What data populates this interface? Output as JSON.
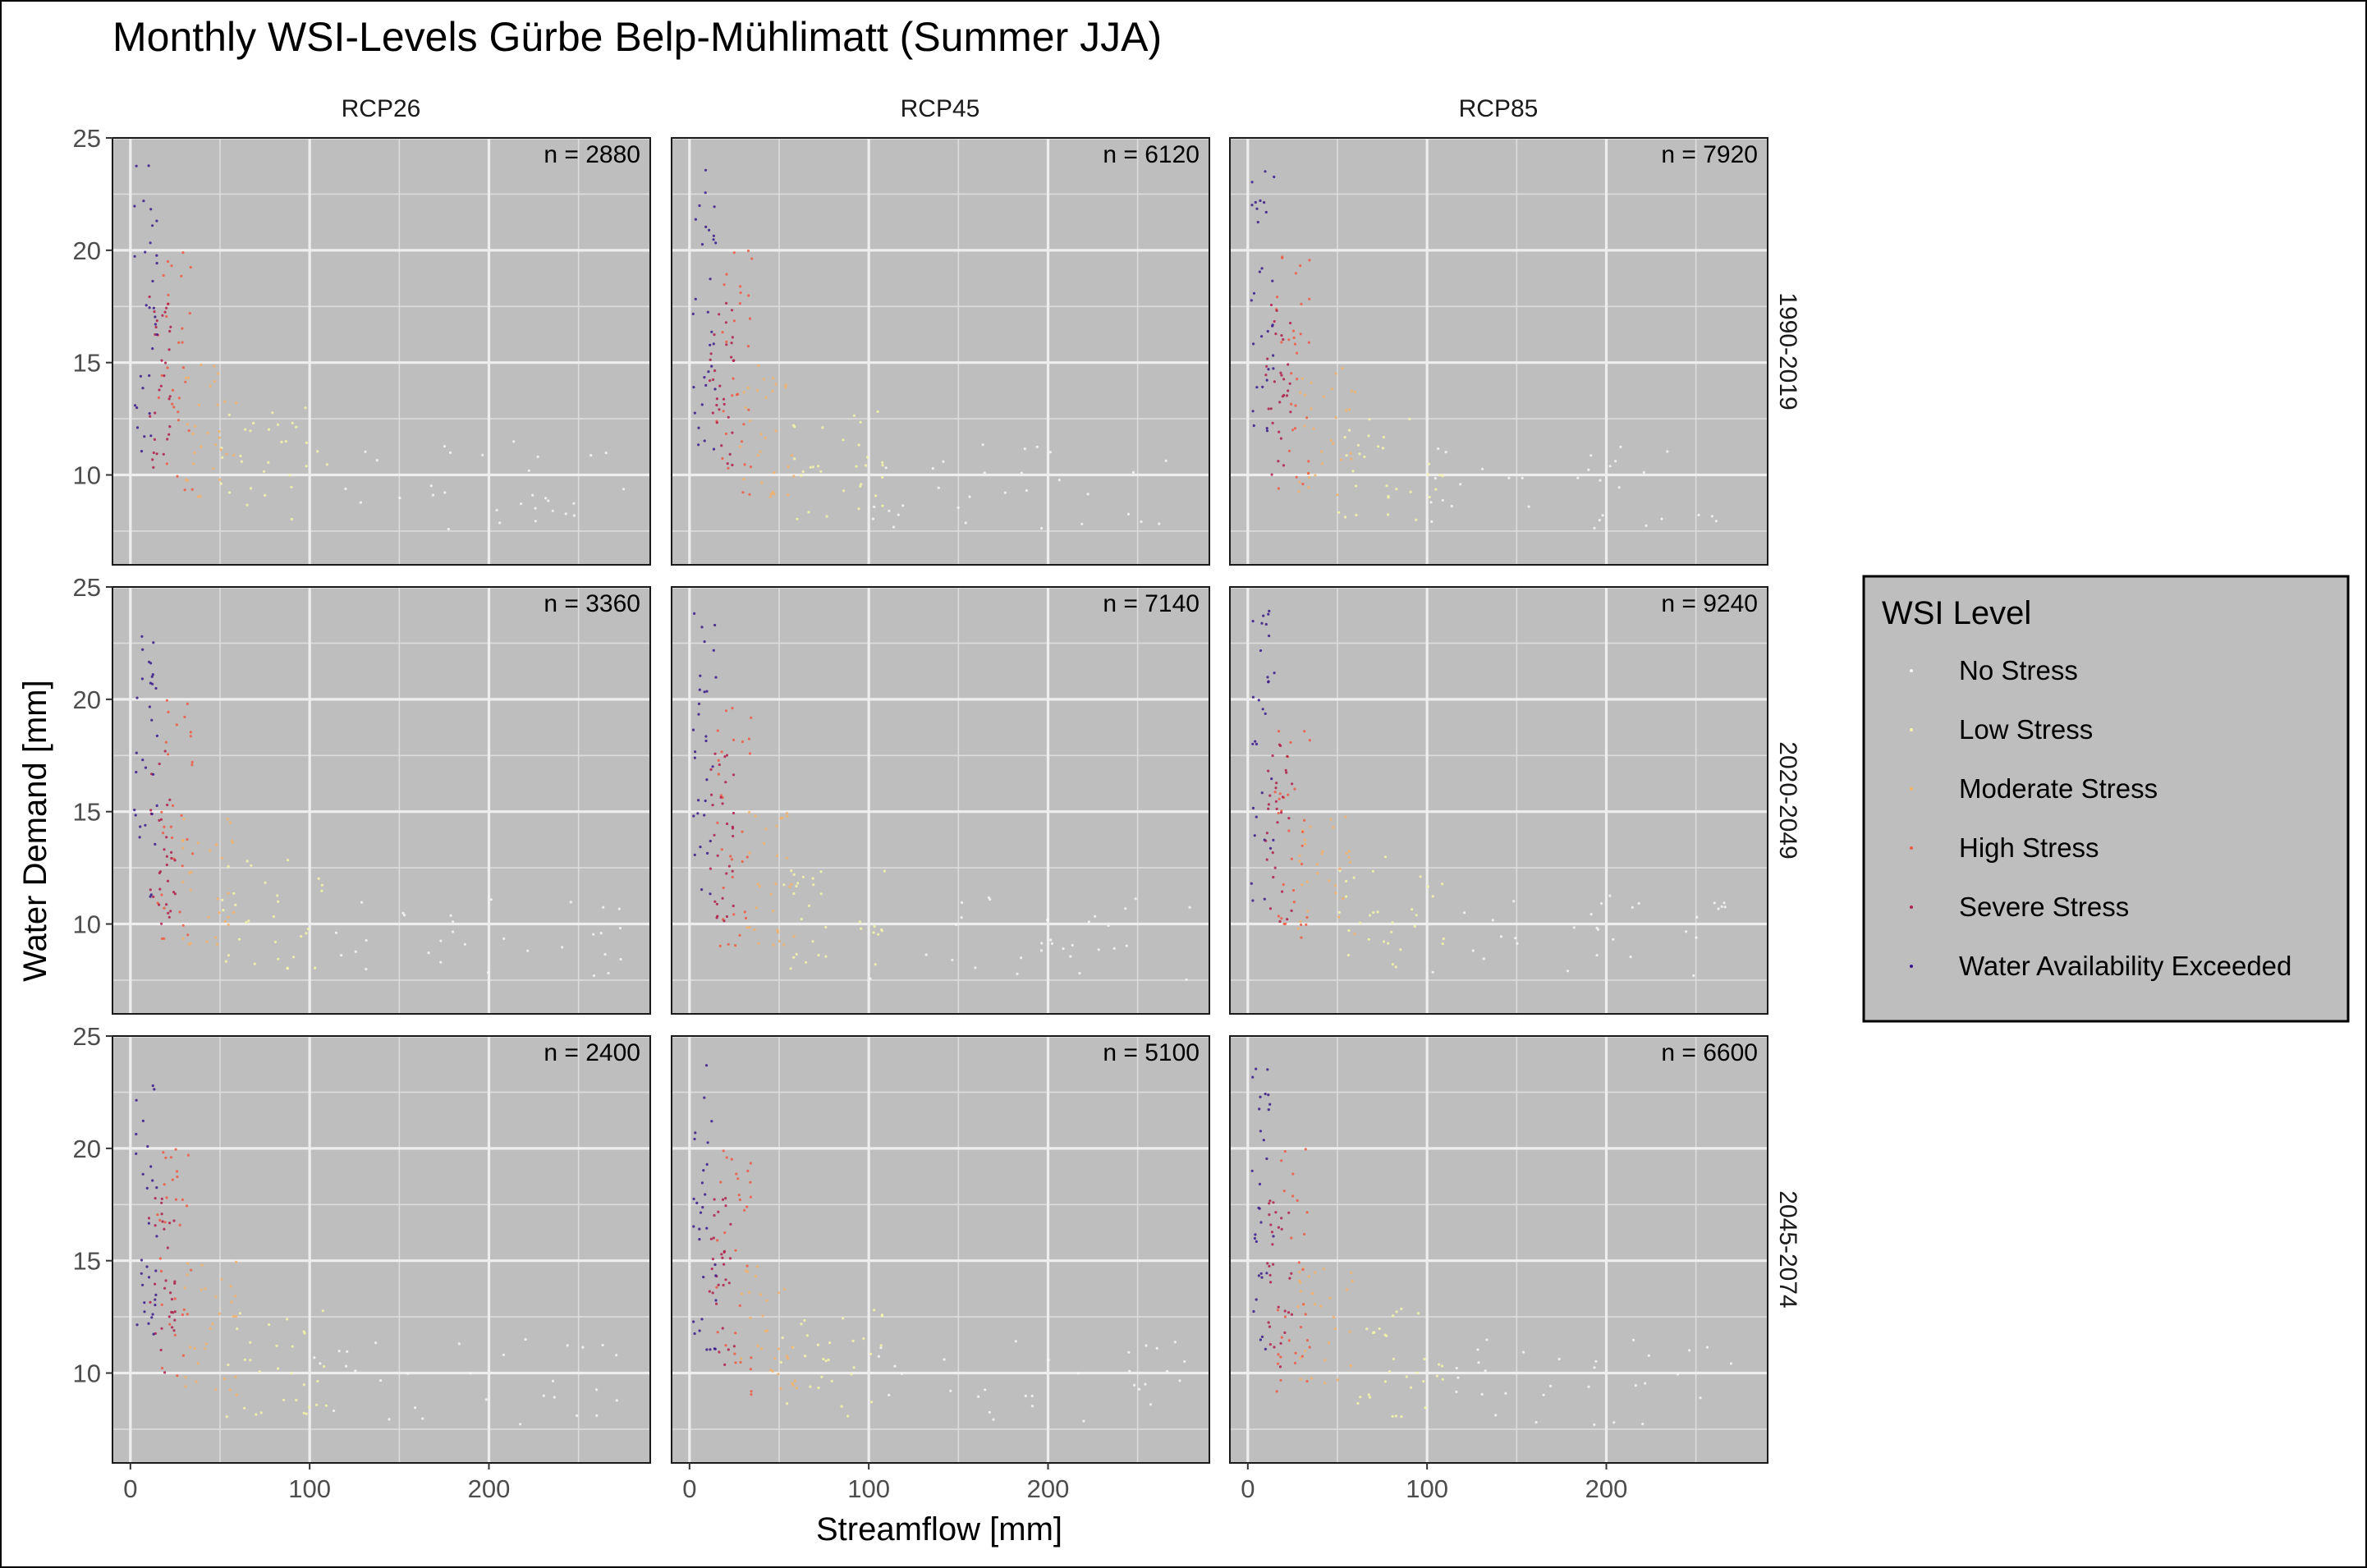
{
  "chart_data": {
    "type": "scatter",
    "title": "Monthly WSI-Levels Gürbe Belp-Mühlimatt (Summer JJA)",
    "xlabel": "Streamflow [mm]",
    "ylabel": "Water Demand [mm]",
    "xlim": [
      -10,
      290
    ],
    "ylim": [
      6,
      25
    ],
    "x_ticks": [
      0,
      100,
      200
    ],
    "x_tick_labels": [
      "0",
      "100",
      "200"
    ],
    "y_ticks": [
      10,
      15,
      20,
      25
    ],
    "y_tick_labels": [
      "10",
      "15",
      "20",
      "25"
    ],
    "grid": true,
    "legend_placement": "right",
    "facet_cols": [
      "RCP26",
      "RCP45",
      "RCP85"
    ],
    "facet_rows": [
      "1990-2019",
      "2020-2049",
      "2045-2074"
    ],
    "panel_counts": [
      [
        "n = 2880",
        "n = 6120",
        "n = 7920"
      ],
      [
        "n = 3360",
        "n = 7140",
        "n = 9240"
      ],
      [
        "n = 2400",
        "n = 5100",
        "n = 6600"
      ]
    ],
    "legend": {
      "title": "WSI Level",
      "items": [
        {
          "label": "No Stress",
          "color": "#f7f7f7"
        },
        {
          "label": "Low Stress",
          "color": "#f6f6a8"
        },
        {
          "label": "Moderate Stress",
          "color": "#f4b066"
        },
        {
          "label": "High Stress",
          "color": "#ee5a44"
        },
        {
          "label": "Severe Stress",
          "color": "#b2204a"
        },
        {
          "label": "Water Availability Exceeded",
          "color": "#3b1a8c"
        }
      ]
    },
    "series": [
      {
        "name": "No Stress",
        "color": "#f7f7f7",
        "x_range": [
          100,
          280
        ],
        "y_range": [
          7.5,
          11.5
        ]
      },
      {
        "name": "Low Stress",
        "color": "#f6f6a8",
        "x_range": [
          50,
          110
        ],
        "y_range": [
          8,
          13
        ]
      },
      {
        "name": "Moderate Stress",
        "color": "#f4b066",
        "x_range": [
          28,
          60
        ],
        "y_range": [
          9,
          15
        ]
      },
      {
        "name": "High Stress",
        "color": "#ee5a44",
        "x_range": [
          15,
          35
        ],
        "y_range": [
          9,
          20
        ]
      },
      {
        "name": "Severe Stress",
        "color": "#b2204a",
        "x_range": [
          10,
          25
        ],
        "y_range": [
          10,
          18
        ]
      },
      {
        "name": "Water Availability Exceeded",
        "color": "#3b1a8c",
        "x_range": [
          2,
          15
        ],
        "y_range": [
          11,
          24
        ]
      }
    ],
    "sampled_points_per_panel": 180
  }
}
